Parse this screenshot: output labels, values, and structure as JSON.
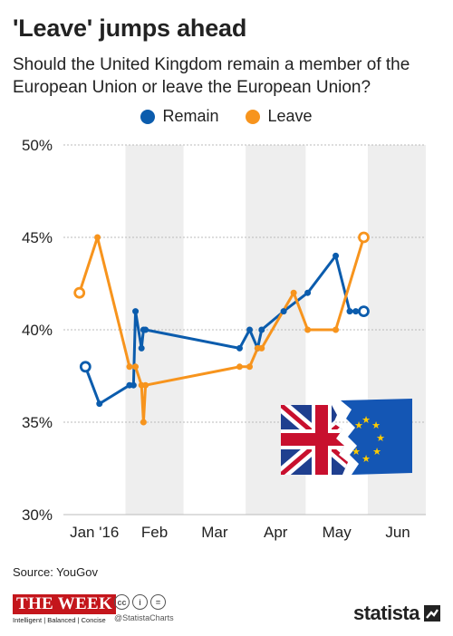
{
  "title": "'Leave' jumps ahead",
  "subtitle": "Should the United Kingdom remain a member of the European Union or leave the European Union?",
  "source": "Source: YouGov",
  "footer": {
    "publisher": "THE WEEK",
    "publisher_tagline": "Intelligent | Balanced | Concise",
    "handle": "@StatistaCharts",
    "brand": "statista",
    "license_icons": [
      "cc",
      "i",
      "="
    ]
  },
  "colors": {
    "remain": "#0b5cad",
    "leave": "#f7941d",
    "band": "#eeeeee",
    "grid": "#bbbbbb"
  },
  "chart_data": {
    "type": "line",
    "xlabel": "",
    "ylabel": "",
    "x_ticks": [
      "Jan '16",
      "Feb",
      "Mar",
      "Apr",
      "May",
      "Jun"
    ],
    "ylim": [
      30,
      50
    ],
    "y_ticks": [
      "30%",
      "35%",
      "40%",
      "45%",
      "50%"
    ],
    "grid": true,
    "legend": "top-center",
    "series": [
      {
        "name": "Remain",
        "color": "#0b5cad",
        "points": [
          [
            "2016-01-12",
            38
          ],
          [
            "2016-01-19",
            36
          ],
          [
            "2016-02-03",
            37
          ],
          [
            "2016-02-05",
            37
          ],
          [
            "2016-02-06",
            41
          ],
          [
            "2016-02-09",
            39
          ],
          [
            "2016-02-10",
            40
          ],
          [
            "2016-02-11",
            40
          ],
          [
            "2016-03-29",
            39
          ],
          [
            "2016-04-03",
            40
          ],
          [
            "2016-04-07",
            39
          ],
          [
            "2016-04-09",
            40
          ],
          [
            "2016-04-20",
            41
          ],
          [
            "2016-05-02",
            42
          ],
          [
            "2016-05-16",
            44
          ],
          [
            "2016-05-23",
            41
          ],
          [
            "2016-05-26",
            41
          ],
          [
            "2016-05-30",
            41
          ]
        ]
      },
      {
        "name": "Leave",
        "color": "#f7941d",
        "points": [
          [
            "2016-01-09",
            42
          ],
          [
            "2016-01-18",
            45
          ],
          [
            "2016-02-03",
            38
          ],
          [
            "2016-02-06",
            38
          ],
          [
            "2016-02-09",
            37
          ],
          [
            "2016-02-10",
            35
          ],
          [
            "2016-02-11",
            37
          ],
          [
            "2016-03-29",
            38
          ],
          [
            "2016-04-03",
            38
          ],
          [
            "2016-04-07",
            39
          ],
          [
            "2016-04-09",
            39
          ],
          [
            "2016-04-25",
            42
          ],
          [
            "2016-05-02",
            40
          ],
          [
            "2016-05-16",
            40
          ],
          [
            "2016-05-30",
            45
          ]
        ]
      }
    ]
  }
}
